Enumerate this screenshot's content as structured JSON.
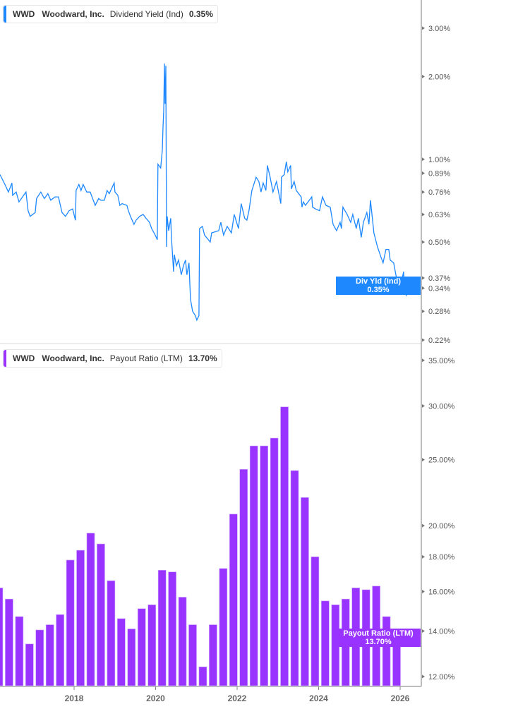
{
  "colors": {
    "yield_line": "#1e88ff",
    "payout_bars": "#9933ff",
    "axis": "#bdbdbd"
  },
  "top_panel": {
    "legend": {
      "ticker": "WWD",
      "company": "Woodward, Inc.",
      "metric": "Dividend Yield (Ind)",
      "value": "0.35%"
    },
    "tag": {
      "label": "Div Yld (Ind)",
      "value": "0.35%"
    }
  },
  "bottom_panel": {
    "legend": {
      "ticker": "WWD",
      "company": "Woodward, Inc.",
      "metric": "Payout Ratio (LTM)",
      "value": "13.70%"
    },
    "tag": {
      "label": "Payout Ratio (LTM)",
      "value": "13.70%"
    }
  },
  "chart_data": [
    {
      "type": "line",
      "title": "",
      "scale": "log",
      "ylim": [
        0.22,
        3.3
      ],
      "y_ticks": [
        "3.00%",
        "2.00%",
        "1.00%",
        "0.89%",
        "0.76%",
        "0.63%",
        "0.50%",
        "0.37%",
        "0.34%",
        "0.28%",
        "0.22%"
      ],
      "y_tick_values": [
        3.0,
        2.0,
        1.0,
        0.89,
        0.76,
        0.63,
        0.5,
        0.37,
        0.34,
        0.28,
        0.22
      ],
      "series": [
        {
          "unit": "%",
          "points": [
            [
              "2016-03-07",
              0.88
            ],
            [
              "2016-03-26",
              0.85
            ],
            [
              "2016-04-21",
              0.81
            ],
            [
              "2016-05-22",
              0.76
            ],
            [
              "2016-06-23",
              0.82
            ],
            [
              "2016-06-29",
              0.74
            ],
            [
              "2016-07-31",
              0.76
            ],
            [
              "2016-08-25",
              0.7
            ],
            [
              "2016-09-26",
              0.73
            ],
            [
              "2016-10-27",
              0.76
            ],
            [
              "2016-11-15",
              0.65
            ],
            [
              "2016-12-04",
              0.62
            ],
            [
              "2017-01-18",
              0.64
            ],
            [
              "2017-01-30",
              0.72
            ],
            [
              "2017-03-09",
              0.76
            ],
            [
              "2017-04-10",
              0.72
            ],
            [
              "2017-05-11",
              0.75
            ],
            [
              "2017-06-06",
              0.71
            ],
            [
              "2017-07-14",
              0.73
            ],
            [
              "2017-08-14",
              0.73
            ],
            [
              "2017-09-15",
              0.64
            ],
            [
              "2017-10-16",
              0.62
            ],
            [
              "2017-11-17",
              0.65
            ],
            [
              "2017-12-19",
              0.66
            ],
            [
              "2018-01-13",
              0.6
            ],
            [
              "2018-01-19",
              0.77
            ],
            [
              "2018-02-13",
              0.81
            ],
            [
              "2018-03-04",
              0.77
            ],
            [
              "2018-03-23",
              0.81
            ],
            [
              "2018-04-24",
              0.76
            ],
            [
              "2018-05-25",
              0.76
            ],
            [
              "2018-07-09",
              0.68
            ],
            [
              "2018-08-09",
              0.72
            ],
            [
              "2018-08-28",
              0.71
            ],
            [
              "2018-09-29",
              0.71
            ],
            [
              "2018-10-24",
              0.77
            ],
            [
              "2018-11-12",
              0.75
            ],
            [
              "2018-12-26",
              0.82
            ],
            [
              "2019-01-02",
              0.76
            ],
            [
              "2019-01-27",
              0.74
            ],
            [
              "2019-02-15",
              0.68
            ],
            [
              "2019-03-06",
              0.69
            ],
            [
              "2019-04-19",
              0.68
            ],
            [
              "2019-05-02",
              0.65
            ],
            [
              "2019-05-21",
              0.62
            ],
            [
              "2019-06-21",
              0.58
            ],
            [
              "2019-07-10",
              0.6
            ],
            [
              "2019-08-11",
              0.62
            ],
            [
              "2019-09-11",
              0.63
            ],
            [
              "2019-10-07",
              0.61
            ],
            [
              "2019-11-07",
              0.59
            ],
            [
              "2019-11-26",
              0.56
            ],
            [
              "2019-12-28",
              0.53
            ],
            [
              "2020-01-16",
              0.51
            ],
            [
              "2020-01-22",
              0.96
            ],
            [
              "2020-02-16",
              0.93
            ],
            [
              "2020-03-01",
              1.08
            ],
            [
              "2020-03-07",
              1.29
            ],
            [
              "2020-03-14",
              1.5
            ],
            [
              "2020-03-20",
              2.23
            ],
            [
              "2020-03-26",
              1.59
            ],
            [
              "2020-04-02",
              2.19
            ],
            [
              "2020-04-08",
              0.48
            ],
            [
              "2020-04-14",
              0.62
            ],
            [
              "2020-04-27",
              0.55
            ],
            [
              "2020-05-16",
              0.61
            ],
            [
              "2020-05-22",
              0.52
            ],
            [
              "2020-05-29",
              0.47
            ],
            [
              "2020-06-10",
              0.39
            ],
            [
              "2020-06-17",
              0.45
            ],
            [
              "2020-07-06",
              0.41
            ],
            [
              "2020-07-25",
              0.43
            ],
            [
              "2020-08-19",
              0.38
            ],
            [
              "2020-09-07",
              0.41
            ],
            [
              "2020-09-26",
              0.43
            ],
            [
              "2020-10-08",
              0.38
            ],
            [
              "2020-10-27",
              0.42
            ],
            [
              "2020-11-09",
              0.31
            ],
            [
              "2020-11-28",
              0.28
            ],
            [
              "2020-12-23",
              0.27
            ],
            [
              "2021-01-05",
              0.26
            ],
            [
              "2021-01-24",
              0.27
            ],
            [
              "2021-01-30",
              0.56
            ],
            [
              "2021-02-24",
              0.57
            ],
            [
              "2021-03-15",
              0.53
            ],
            [
              "2021-05-05",
              0.5
            ],
            [
              "2021-05-18",
              0.54
            ],
            [
              "2021-07-20",
              0.55
            ],
            [
              "2021-08-08",
              0.59
            ],
            [
              "2021-09-02",
              0.53
            ],
            [
              "2021-10-04",
              0.57
            ],
            [
              "2021-11-11",
              0.54
            ],
            [
              "2021-12-06",
              0.63
            ],
            [
              "2022-01-13",
              0.56
            ],
            [
              "2022-02-07",
              0.69
            ],
            [
              "2022-03-10",
              0.61
            ],
            [
              "2022-03-29",
              0.6
            ],
            [
              "2022-04-17",
              0.65
            ],
            [
              "2022-05-13",
              0.77
            ],
            [
              "2022-06-20",
              0.86
            ],
            [
              "2022-07-15",
              0.83
            ],
            [
              "2022-08-03",
              0.76
            ],
            [
              "2022-08-22",
              0.82
            ],
            [
              "2022-09-16",
              0.77
            ],
            [
              "2022-09-29",
              0.95
            ],
            [
              "2022-10-24",
              0.86
            ],
            [
              "2022-11-18",
              0.76
            ],
            [
              "2022-12-20",
              0.83
            ],
            [
              "2023-01-27",
              0.69
            ],
            [
              "2023-02-02",
              0.86
            ],
            [
              "2023-02-27",
              0.88
            ],
            [
              "2023-03-18",
              0.98
            ],
            [
              "2023-03-31",
              0.9
            ],
            [
              "2023-04-25",
              0.95
            ],
            [
              "2023-05-02",
              0.78
            ],
            [
              "2023-05-27",
              0.83
            ],
            [
              "2023-06-15",
              0.77
            ],
            [
              "2023-07-29",
              0.73
            ],
            [
              "2023-08-05",
              0.67
            ],
            [
              "2023-08-17",
              0.7
            ],
            [
              "2023-09-05",
              0.68
            ],
            [
              "2023-11-01",
              0.73
            ],
            [
              "2023-11-07",
              0.67
            ],
            [
              "2023-12-03",
              0.66
            ],
            [
              "2024-01-09",
              0.65
            ],
            [
              "2024-02-04",
              0.73
            ],
            [
              "2024-03-07",
              0.68
            ],
            [
              "2024-04-14",
              0.67
            ],
            [
              "2024-05-10",
              0.58
            ],
            [
              "2024-06-10",
              0.55
            ],
            [
              "2024-07-12",
              0.59
            ],
            [
              "2024-07-24",
              0.56
            ],
            [
              "2024-08-06",
              0.67
            ],
            [
              "2024-09-13",
              0.63
            ],
            [
              "2024-10-15",
              0.59
            ],
            [
              "2024-11-03",
              0.63
            ],
            [
              "2024-12-04",
              0.56
            ],
            [
              "2024-12-23",
              0.61
            ],
            [
              "2025-01-18",
              0.52
            ],
            [
              "2025-02-06",
              0.59
            ],
            [
              "2025-03-09",
              0.64
            ],
            [
              "2025-03-28",
              0.58
            ],
            [
              "2025-04-10",
              0.71
            ],
            [
              "2025-04-22",
              0.64
            ],
            [
              "2025-05-11",
              0.54
            ],
            [
              "2025-06-12",
              0.48
            ],
            [
              "2025-07-14",
              0.44
            ],
            [
              "2025-08-01",
              0.42
            ],
            [
              "2025-08-27",
              0.47
            ],
            [
              "2025-09-21",
              0.47
            ],
            [
              "2025-10-04",
              0.43
            ],
            [
              "2025-11-04",
              0.42
            ],
            [
              "2025-11-29",
              0.37
            ],
            [
              "2026-01-01",
              0.34
            ],
            [
              "2026-02-01",
              0.39
            ],
            [
              "2026-02-07",
              0.33
            ],
            [
              "2026-02-26",
              0.32
            ],
            [
              "2026-03-10",
              0.35
            ]
          ]
        }
      ]
    },
    {
      "type": "bar",
      "title": "",
      "scale": "log",
      "ylim": [
        11.5,
        36
      ],
      "y_ticks": [
        "35.00%",
        "30.00%",
        "25.00%",
        "20.00%",
        "18.00%",
        "16.00%",
        "14.00%",
        "12.00%"
      ],
      "y_tick_values": [
        35,
        30,
        25,
        20,
        18,
        16,
        14,
        12
      ],
      "x_ticks": [
        "2018",
        "2020",
        "2022",
        "2024",
        "2026"
      ],
      "categories": [
        "2016-03",
        "2016-06",
        "2016-09",
        "2016-12",
        "2017-03",
        "2017-06",
        "2017-09",
        "2017-12",
        "2018-03",
        "2018-06",
        "2018-09",
        "2018-12",
        "2019-03",
        "2019-06",
        "2019-09",
        "2019-12",
        "2020-03",
        "2020-06",
        "2020-09",
        "2020-12",
        "2021-03",
        "2021-06",
        "2021-09",
        "2021-12",
        "2022-03",
        "2022-06",
        "2022-09",
        "2022-12",
        "2023-03",
        "2023-06",
        "2023-09",
        "2023-12",
        "2024-03",
        "2024-06",
        "2024-09",
        "2024-12",
        "2025-03",
        "2025-06",
        "2025-09",
        "2025-12"
      ],
      "series": [
        {
          "unit": "%",
          "values": [
            16.2,
            15.6,
            14.7,
            13.4,
            14.05,
            14.3,
            14.8,
            17.8,
            18.4,
            19.5,
            18.8,
            16.6,
            14.6,
            14.1,
            15.1,
            15.3,
            17.2,
            17.1,
            15.7,
            14.3,
            12.4,
            14.3,
            17.3,
            20.8,
            24.2,
            26.2,
            26.2,
            26.9,
            29.9,
            24.1,
            22.0,
            18.0,
            15.5,
            15.3,
            15.6,
            16.2,
            16.1,
            16.3,
            14.7,
            13.7
          ]
        }
      ]
    }
  ]
}
